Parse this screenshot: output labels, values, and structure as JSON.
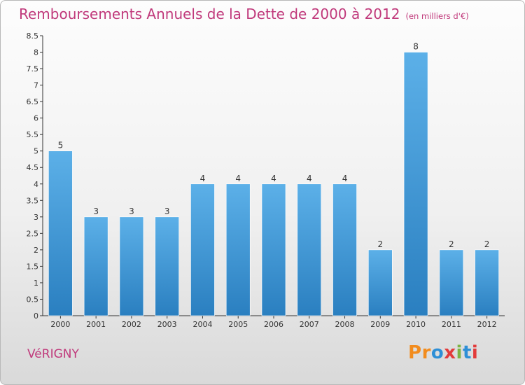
{
  "title": "Remboursements Annuels de la Dette de 2000 à 2012",
  "title_unit": "(en milliers d'€)",
  "city": "VéRIGNY",
  "logo": {
    "letters": [
      "P",
      "r",
      "o",
      "x",
      "i",
      "t",
      "i"
    ],
    "colors": [
      "#f28c1e",
      "#f28c1e",
      "#2e8fd6",
      "#e23b3b",
      "#7cb342",
      "#2e8fd6",
      "#e23b3b"
    ]
  },
  "colors": {
    "accent": "#c0397b",
    "bar_top": "#5cb0e8",
    "bar_bottom": "#2a7fc0",
    "axis": "#333333"
  },
  "chart_data": {
    "type": "bar",
    "title": "Remboursements Annuels de la Dette de 2000 à 2012",
    "categories": [
      "2000",
      "2001",
      "2002",
      "2003",
      "2004",
      "2005",
      "2006",
      "2007",
      "2008",
      "2009",
      "2010",
      "2011",
      "2012"
    ],
    "values": [
      5,
      3,
      3,
      3,
      4,
      4,
      4,
      4,
      4,
      2,
      8,
      2,
      2
    ],
    "data_labels": [
      "5",
      "3",
      "3",
      "3",
      "4",
      "4",
      "4",
      "4",
      "4",
      "2",
      "8",
      "2",
      "2"
    ],
    "ylim": [
      0,
      8.5
    ],
    "yticks": [
      0,
      0.5,
      1,
      1.5,
      2,
      2.5,
      3,
      3.5,
      4,
      4.5,
      5,
      5.5,
      6,
      6.5,
      7,
      7.5,
      8,
      8.5
    ],
    "ytick_labels": [
      "0",
      "0.5",
      "1",
      "1.5",
      "2",
      "2.5",
      "3",
      "3.5",
      "4",
      "4.5",
      "5",
      "5.5",
      "6",
      "6.5",
      "7",
      "7.5",
      "8",
      "8.5"
    ],
    "grid": false,
    "legend": "none"
  }
}
